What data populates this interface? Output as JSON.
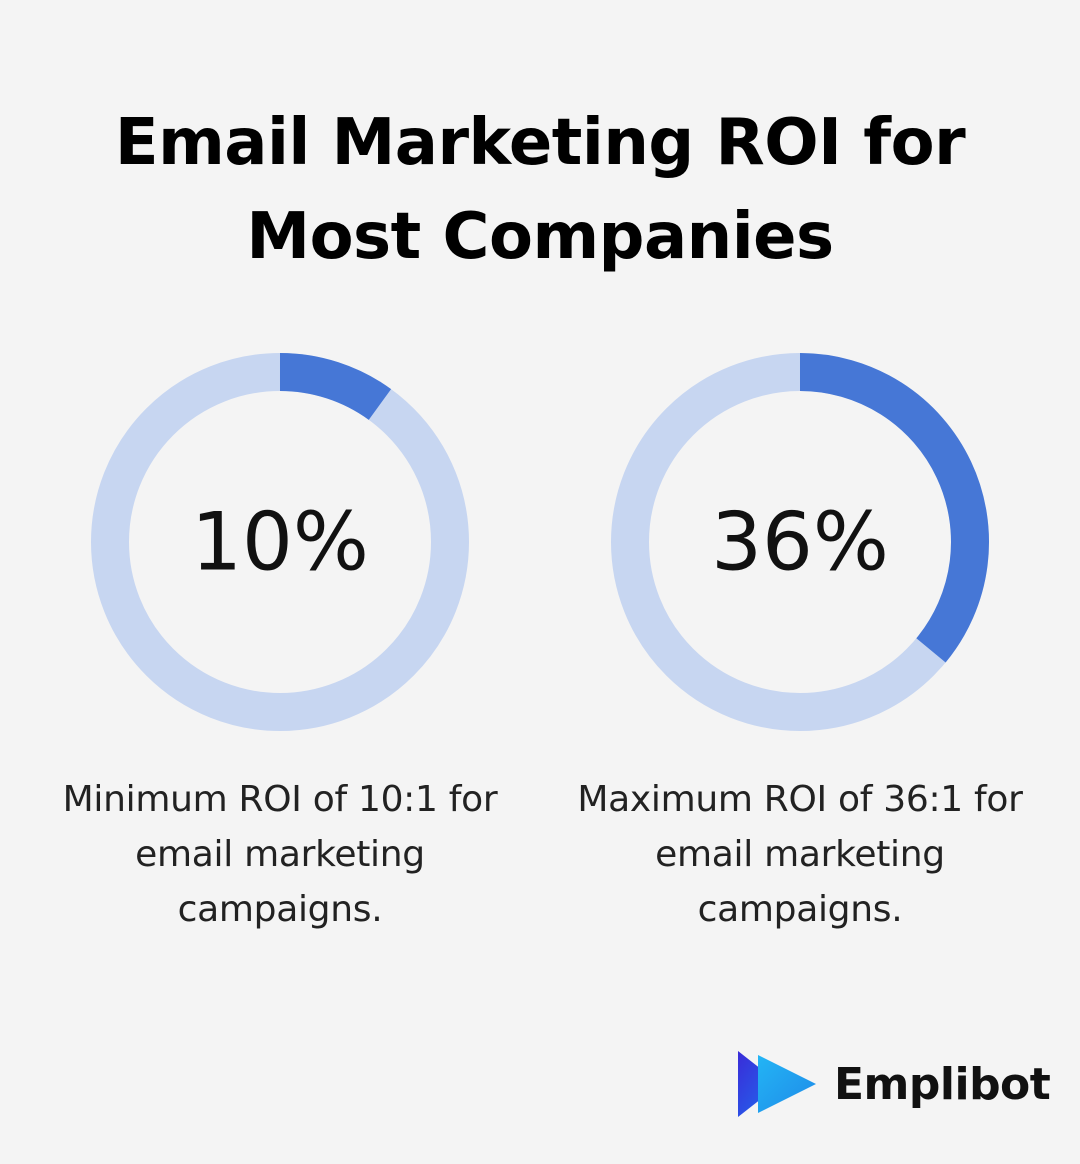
{
  "title": {
    "line1": "Email Marketing ROI for",
    "line2": "Most Companies"
  },
  "colors": {
    "track": "#c7d6f1",
    "fill": "#4677d6",
    "background": "#f4f4f4"
  },
  "chart_data": [
    {
      "type": "pie",
      "variant": "donut",
      "value": 10,
      "max": 100,
      "label": "10%",
      "caption": [
        "Minimum ROI of 10:1 for",
        "email marketing",
        "campaigns."
      ]
    },
    {
      "type": "pie",
      "variant": "donut",
      "value": 36,
      "max": 100,
      "label": "36%",
      "caption": [
        "Maximum ROI of 36:1 for",
        "email marketing",
        "campaigns."
      ]
    }
  ],
  "brand": {
    "name": "Emplibot",
    "logo_icon": "emplibot-logo-icon"
  }
}
